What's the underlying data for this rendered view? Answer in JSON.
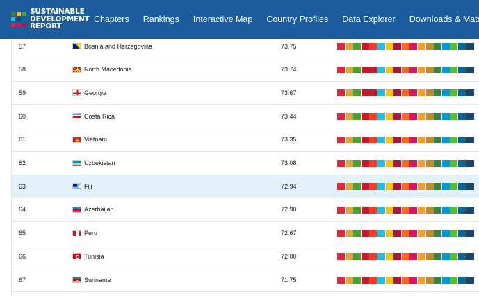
{
  "brand": {
    "line1": "SUSTAINABLE",
    "line2": "DEVELOPMENT",
    "line3": "REPORT",
    "logo_colors": [
      "#3f7e44",
      "#f6b826",
      "#4c9f38",
      "#26bde2",
      "#19486a",
      "#00689d",
      "#e5243b",
      "#dd1367",
      "#a21942"
    ]
  },
  "nav": {
    "items": [
      "Chapters",
      "Rankings",
      "Interactive Map",
      "Country Profiles",
      "Data Explorer",
      "Downloads & Materials"
    ]
  },
  "sdg_colors": [
    "#e5243b",
    "#dda63a",
    "#4c9f38",
    "#c5192d",
    "#ff3a21",
    "#26bde2",
    "#fcc30b",
    "#a21942",
    "#fd6925",
    "#dd1367",
    "#fd9d24",
    "#bf8b2e",
    "#3f7e44",
    "#0a97d9",
    "#56c02b",
    "#00689d",
    "#19486a"
  ],
  "rows": [
    {
      "rank": "57",
      "country": "Bosnia and Herzegovina",
      "score": "73.75",
      "flag": "bosnia",
      "highlight": false,
      "bars": [
        "#e5243b",
        "#dda63a",
        "#4c9f38",
        "#c5192d",
        "#ff3a21",
        "#26bde2",
        "#fcc30b",
        "#a21942",
        "#fd6925",
        "#dd1367",
        "#fd9d24",
        "#bf8b2e",
        "#3f7e44",
        "#0a97d9",
        "#56c02b",
        "#00689d",
        "#19486a"
      ]
    },
    {
      "rank": "58",
      "country": "North Macedonia",
      "score": "73.74",
      "flag": "macedonia",
      "highlight": false,
      "bars": [
        "#e5243b",
        "#dda63a",
        "#4c9f38",
        "#c5192d",
        "#c5192d",
        "#26bde2",
        "#fcc30b",
        "#a21942",
        "#fd6925",
        "#dd1367",
        "#fd9d24",
        "#bf8b2e",
        "#3f7e44",
        "#0a97d9",
        "#56c02b",
        "#00689d",
        "#19486a"
      ]
    },
    {
      "rank": "59",
      "country": "Georgia",
      "score": "73.67",
      "flag": "georgia",
      "highlight": false,
      "bars": [
        "#e5243b",
        "#dda63a",
        "#4c9f38",
        "#c5192d",
        "#c5192d",
        "#26bde2",
        "#fcc30b",
        "#a21942",
        "#fd6925",
        "#dd1367",
        "#fd9d24",
        "#bf8b2e",
        "#3f7e44",
        "#0a97d9",
        "#56c02b",
        "#00689d",
        "#19486a"
      ]
    },
    {
      "rank": "60",
      "country": "Costa Rica",
      "score": "73.44",
      "flag": "costarica",
      "highlight": false,
      "bars": [
        "#e5243b",
        "#dda63a",
        "#4c9f38",
        "#c5192d",
        "#ff3a21",
        "#26bde2",
        "#fcc30b",
        "#a21942",
        "#fd6925",
        "#dd1367",
        "#fd9d24",
        "#bf8b2e",
        "#3f7e44",
        "#0a97d9",
        "#56c02b",
        "#00689d",
        "#19486a"
      ]
    },
    {
      "rank": "61",
      "country": "Vietnam",
      "score": "73.35",
      "flag": "vietnam",
      "highlight": false,
      "bars": [
        "#e5243b",
        "#dda63a",
        "#4c9f38",
        "#c5192d",
        "#ff3a21",
        "#26bde2",
        "#fcc30b",
        "#a21942",
        "#fd6925",
        "#dd1367",
        "#fd9d24",
        "#bf8b2e",
        "#3f7e44",
        "#0a97d9",
        "#56c02b",
        "#00689d",
        "#19486a"
      ]
    },
    {
      "rank": "62",
      "country": "Uzbekistan",
      "score": "73.08",
      "flag": "uzbekistan",
      "highlight": false,
      "bars": [
        "#e5243b",
        "#dda63a",
        "#4c9f38",
        "#c5192d",
        "#ff3a21",
        "#26bde2",
        "#fcc30b",
        "#a21942",
        "#fd6925",
        "#dd1367",
        "#fd9d24",
        "#bf8b2e",
        "#3f7e44",
        "#0a97d9",
        "#56c02b",
        "#00689d",
        "#19486a"
      ]
    },
    {
      "rank": "63",
      "country": "Fiji",
      "score": "72.94",
      "flag": "fiji",
      "highlight": true,
      "bars": [
        "#e5243b",
        "#dda63a",
        "#4c9f38",
        "#c5192d",
        "#ff3a21",
        "#26bde2",
        "#fcc30b",
        "#a21942",
        "#fd6925",
        "#dd1367",
        "#fd9d24",
        "#bf8b2e",
        "#3f7e44",
        "#0a97d9",
        "#56c02b",
        "#00689d",
        "#19486a"
      ]
    },
    {
      "rank": "64",
      "country": "Azerbaijan",
      "score": "72.90",
      "flag": "azerbaijan",
      "highlight": false,
      "bars": [
        "#e5243b",
        "#dda63a",
        "#4c9f38",
        "#c5192d",
        "#ff3a21",
        "#26bde2",
        "#fcc30b",
        "#a21942",
        "#fd6925",
        "#dd1367",
        "#fd9d24",
        "#bf8b2e",
        "#3f7e44",
        "#0a97d9",
        "#56c02b",
        "#00689d",
        "#19486a"
      ]
    },
    {
      "rank": "65",
      "country": "Peru",
      "score": "72.67",
      "flag": "peru",
      "highlight": false,
      "bars": [
        "#e5243b",
        "#dda63a",
        "#4c9f38",
        "#c5192d",
        "#ff3a21",
        "#26bde2",
        "#fcc30b",
        "#a21942",
        "#fd6925",
        "#dd1367",
        "#fd9d24",
        "#bf8b2e",
        "#3f7e44",
        "#0a97d9",
        "#56c02b",
        "#00689d",
        "#19486a"
      ]
    },
    {
      "rank": "66",
      "country": "Tunisia",
      "score": "72.00",
      "flag": "tunisia",
      "highlight": false,
      "bars": [
        "#e5243b",
        "#dda63a",
        "#4c9f38",
        "#c5192d",
        "#ff3a21",
        "#26bde2",
        "#fcc30b",
        "#a21942",
        "#fd6925",
        "#dd1367",
        "#fd9d24",
        "#bf8b2e",
        "#3f7e44",
        "#0a97d9",
        "#56c02b",
        "#00689d",
        "#19486a"
      ]
    },
    {
      "rank": "67",
      "country": "Suriname",
      "score": "71.75",
      "flag": "suriname",
      "highlight": false,
      "bars": [
        "#e5243b",
        "#dda63a",
        "#4c9f38",
        "#c5192d",
        "#ff3a21",
        "#26bde2",
        "#fcc30b",
        "#a21942",
        "#fd6925",
        "#dd1367",
        "#fd9d24",
        "#bf8b2e",
        "#3f7e44",
        "#0a97d9",
        "#56c02b",
        "#00689d",
        "#19486a"
      ]
    }
  ]
}
